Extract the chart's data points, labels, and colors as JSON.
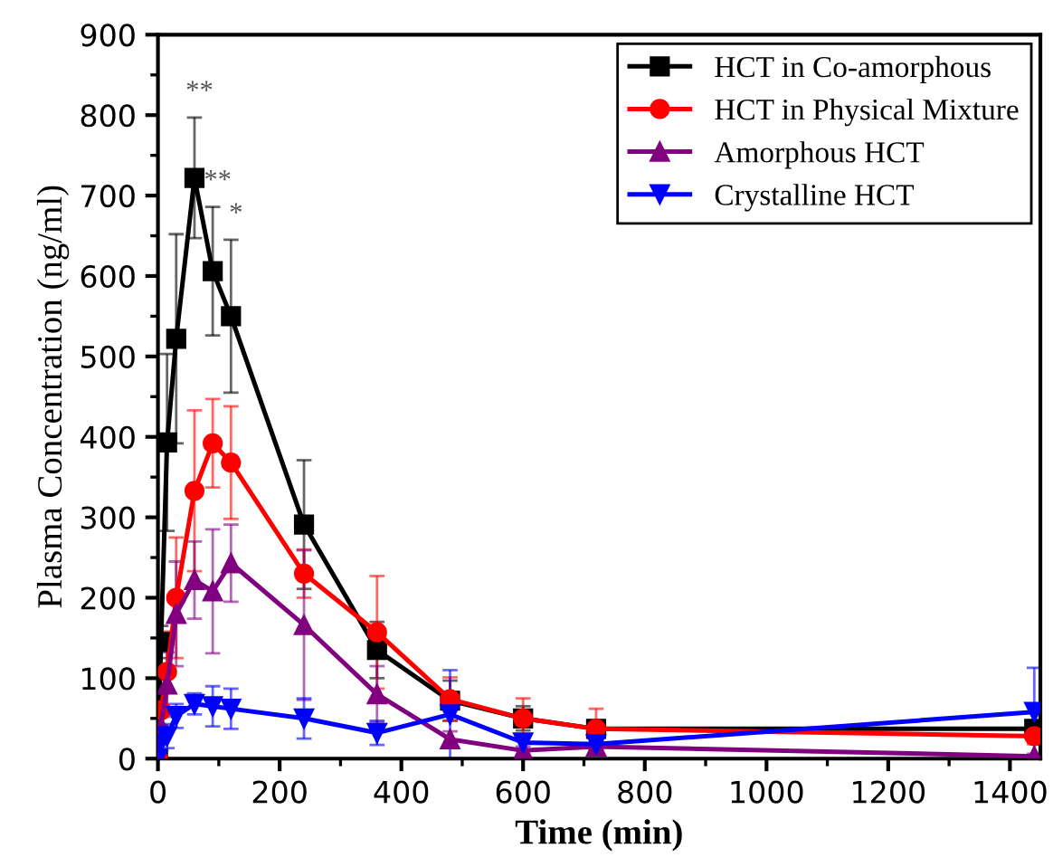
{
  "chart_data": {
    "type": "line",
    "xlabel": "Time (min)",
    "ylabel": "Plasma Concentration (ng/ml)",
    "x": [
      0,
      5,
      15,
      30,
      60,
      90,
      120,
      240,
      360,
      480,
      600,
      720,
      1440
    ],
    "series": [
      {
        "name": "HCT in Co-amorphous",
        "color": "#000000",
        "marker": "square",
        "values": [
          0,
          145,
          393,
          522,
          722,
          606,
          550,
          291,
          135,
          72,
          50,
          37,
          37
        ],
        "errors": [
          0,
          20,
          110,
          130,
          75,
          80,
          95,
          80,
          35,
          25,
          15,
          10,
          10
        ]
      },
      {
        "name": "HCT in Physical Mixture",
        "color": "#ff0000",
        "marker": "circle",
        "values": [
          0,
          60,
          108,
          200,
          333,
          392,
          368,
          230,
          157,
          74,
          50,
          37,
          28
        ],
        "errors": [
          0,
          20,
          50,
          75,
          100,
          55,
          70,
          30,
          70,
          27,
          25,
          25,
          10
        ]
      },
      {
        "name": "Amorphous HCT",
        "color": "#800080",
        "marker": "triangle",
        "values": [
          0,
          40,
          92,
          180,
          222,
          208,
          243,
          166,
          80,
          24,
          10,
          15,
          3
        ],
        "errors": [
          0,
          15,
          40,
          65,
          48,
          77,
          48,
          93,
          35,
          10,
          5,
          5,
          3
        ]
      },
      {
        "name": "Crystalline HCT",
        "color": "#0000ff",
        "marker": "triangle_down",
        "values": [
          0,
          20,
          28,
          53,
          68,
          65,
          62,
          50,
          32,
          55,
          20,
          18,
          58
        ],
        "errors": [
          0,
          10,
          15,
          15,
          13,
          25,
          25,
          25,
          15,
          55,
          10,
          10,
          55
        ]
      }
    ],
    "annotations": [
      {
        "text": "**",
        "x": 60,
        "y": 797
      },
      {
        "text": "**",
        "x": 90,
        "y": 686
      },
      {
        "text": "*",
        "x": 120,
        "y": 645
      }
    ],
    "xlim": [
      0,
      1450
    ],
    "ylim": [
      0,
      900
    ],
    "xticks": [
      0,
      200,
      400,
      600,
      800,
      1000,
      1200,
      1400
    ],
    "yticks": [
      0,
      100,
      200,
      300,
      400,
      500,
      600,
      700,
      800,
      900
    ],
    "grid": false,
    "legend": "top right",
    "line_style": "solid"
  }
}
